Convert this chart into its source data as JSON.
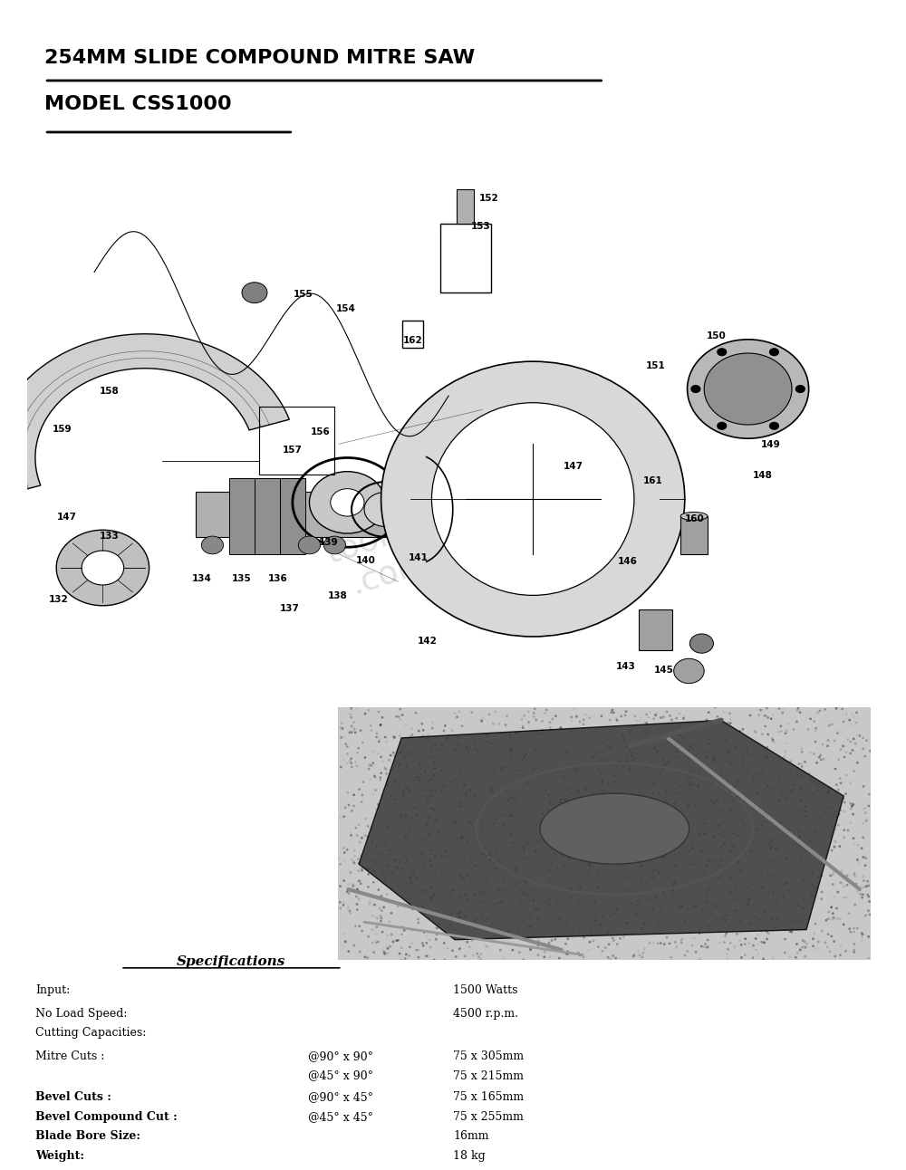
{
  "title_line1": "254MM SLIDE COMPOUND MITRE SAW",
  "title_line2": "MODEL CSS1000",
  "background_color": "#ffffff",
  "title_fontsize": 16,
  "title_fontweight": "bold",
  "specs_title": "Specifications",
  "specs": [
    {
      "label": "Input:",
      "angle": "",
      "value": "1500 Watts"
    },
    {
      "label": "No Load Speed:",
      "angle": "",
      "value": "4500 r.p.m."
    },
    {
      "label": "Cutting Capacities:",
      "angle": "",
      "value": ""
    },
    {
      "label": "Mitre Cuts :",
      "angle": "@90° x 90°",
      "value": "75 x 305mm"
    },
    {
      "label": "",
      "angle": "@45° x 90°",
      "value": "75 x 215mm"
    },
    {
      "label": "Bevel Cuts :",
      "angle": "@90° x 45°",
      "value": "75 x 165mm"
    },
    {
      "label": "Bevel Compound Cut :",
      "angle": "@45° x 45°",
      "value": "75 x 255mm"
    },
    {
      "label": "Blade Bore Size:",
      "angle": "",
      "value": "16mm"
    },
    {
      "label": "Weight:",
      "angle": "",
      "value": "18 kg"
    }
  ],
  "bold_labels": [
    "Bevel Cuts :",
    "Bevel Compound Cut :",
    "Blade Bore Size:",
    "Weight:"
  ]
}
